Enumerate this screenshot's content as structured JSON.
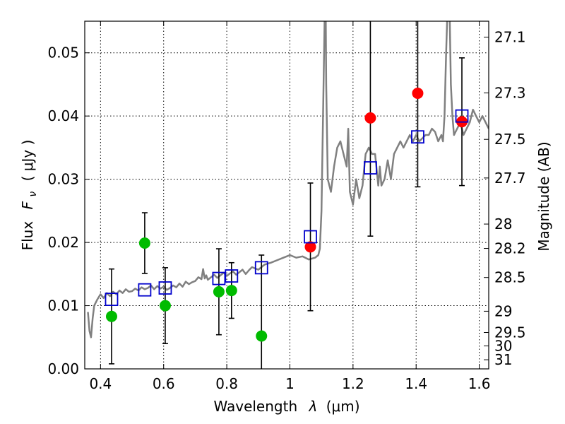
{
  "chart_data": {
    "type": "scatter",
    "title": "",
    "xlabel": "Wavelength",
    "xlabel_symbol": "λ",
    "xlabel_unit": "(μm)",
    "ylabel": "Flux",
    "ylabel_symbol": "F",
    "ylabel_sub": "ν",
    "ylabel_unit": "( μJy )",
    "y2label": "Magnitude (AB)",
    "xlim": [
      0.35,
      1.63
    ],
    "ylim": [
      0.0,
      0.055
    ],
    "grid": true,
    "x_ticks": [
      0.4,
      0.6,
      0.8,
      1.0,
      1.2,
      1.4,
      1.6
    ],
    "x_tick_labels": [
      "0.4",
      "0.6",
      "0.8",
      "1",
      "1.2",
      "1.4",
      "1.6"
    ],
    "y_ticks": [
      0.0,
      0.01,
      0.02,
      0.03,
      0.04,
      0.05
    ],
    "y_tick_labels": [
      "0.00",
      "0.01",
      "0.02",
      "0.03",
      "0.04",
      "0.05"
    ],
    "y2_ticks": [
      27.1,
      27.3,
      27.5,
      27.7,
      28,
      28.2,
      28.5,
      29,
      29.5,
      30,
      31
    ],
    "y2_tick_labels": [
      "27.1",
      "27.3",
      "27.5",
      "27.7",
      "28",
      "28.2",
      "28.5",
      "29",
      "29.5",
      "30",
      "31"
    ],
    "colors": {
      "model": "#808080",
      "hst": "#00bb00",
      "irac": "#ff0000",
      "model_phot": "#0000cc",
      "errorbar": "#000000"
    },
    "series": [
      {
        "name": "model_sed",
        "style": "line",
        "x": [
          0.36,
          0.365,
          0.37,
          0.375,
          0.38,
          0.39,
          0.4,
          0.41,
          0.42,
          0.43,
          0.44,
          0.45,
          0.46,
          0.47,
          0.48,
          0.49,
          0.5,
          0.51,
          0.52,
          0.53,
          0.54,
          0.55,
          0.56,
          0.57,
          0.58,
          0.59,
          0.6,
          0.61,
          0.62,
          0.63,
          0.64,
          0.65,
          0.66,
          0.67,
          0.68,
          0.69,
          0.7,
          0.71,
          0.72,
          0.725,
          0.73,
          0.735,
          0.74,
          0.75,
          0.76,
          0.77,
          0.78,
          0.79,
          0.8,
          0.81,
          0.82,
          0.83,
          0.84,
          0.85,
          0.86,
          0.87,
          0.88,
          0.9,
          0.92,
          0.94,
          0.96,
          0.98,
          1.0,
          1.02,
          1.04,
          1.06,
          1.08,
          1.09,
          1.095,
          1.1,
          1.105,
          1.11,
          1.113,
          1.115,
          1.12,
          1.13,
          1.14,
          1.15,
          1.16,
          1.17,
          1.18,
          1.185,
          1.19,
          1.2,
          1.21,
          1.22,
          1.23,
          1.24,
          1.25,
          1.26,
          1.27,
          1.28,
          1.285,
          1.29,
          1.3,
          1.31,
          1.32,
          1.33,
          1.34,
          1.35,
          1.36,
          1.37,
          1.38,
          1.39,
          1.4,
          1.41,
          1.42,
          1.43,
          1.44,
          1.45,
          1.46,
          1.47,
          1.48,
          1.485,
          1.49,
          1.495,
          1.5,
          1.505,
          1.51,
          1.515,
          1.52,
          1.53,
          1.54,
          1.55,
          1.56,
          1.57,
          1.58,
          1.59,
          1.6,
          1.61,
          1.62,
          1.63
        ],
        "y": [
          0.009,
          0.006,
          0.005,
          0.008,
          0.01,
          0.011,
          0.0118,
          0.0112,
          0.012,
          0.0115,
          0.0122,
          0.0118,
          0.0124,
          0.012,
          0.0126,
          0.0122,
          0.0123,
          0.0127,
          0.0124,
          0.0129,
          0.0126,
          0.0128,
          0.0132,
          0.0126,
          0.0131,
          0.0127,
          0.013,
          0.0125,
          0.0128,
          0.0132,
          0.0129,
          0.0135,
          0.013,
          0.0138,
          0.0134,
          0.0137,
          0.0139,
          0.0145,
          0.0142,
          0.0158,
          0.0143,
          0.0148,
          0.0141,
          0.0145,
          0.0149,
          0.0144,
          0.0148,
          0.0152,
          0.0147,
          0.0151,
          0.0154,
          0.0149,
          0.0153,
          0.0157,
          0.015,
          0.0156,
          0.0161,
          0.0157,
          0.0165,
          0.0168,
          0.0172,
          0.0176,
          0.018,
          0.0176,
          0.0178,
          0.0173,
          0.0176,
          0.018,
          0.019,
          0.025,
          0.04,
          0.055,
          0.06,
          0.045,
          0.03,
          0.028,
          0.032,
          0.035,
          0.036,
          0.034,
          0.032,
          0.038,
          0.028,
          0.026,
          0.03,
          0.027,
          0.029,
          0.034,
          0.035,
          0.034,
          0.034,
          0.029,
          0.032,
          0.029,
          0.03,
          0.033,
          0.03,
          0.034,
          0.035,
          0.036,
          0.035,
          0.036,
          0.037,
          0.036,
          0.037,
          0.036,
          0.0365,
          0.037,
          0.037,
          0.038,
          0.0375,
          0.036,
          0.037,
          0.036,
          0.04,
          0.05,
          0.058,
          0.06,
          0.045,
          0.04,
          0.037,
          0.038,
          0.039,
          0.037,
          0.038,
          0.039,
          0.041,
          0.04,
          0.039,
          0.04,
          0.039,
          0.038
        ]
      },
      {
        "name": "hst_photometry",
        "style": "circle",
        "x": [
          0.435,
          0.54,
          0.605,
          0.775,
          0.815,
          0.91
        ],
        "y": [
          0.0083,
          0.0199,
          0.01,
          0.0122,
          0.0124,
          0.0052
        ],
        "yerr": [
          0.0075,
          0.0048,
          0.006,
          0.0068,
          0.0044,
          0.0128
        ]
      },
      {
        "name": "irac_photometry",
        "style": "circle",
        "x": [
          1.065,
          1.255,
          1.405,
          1.545
        ],
        "y": [
          0.0193,
          0.0397,
          0.0436,
          0.0391
        ],
        "yerr": [
          0.0101,
          0.0187,
          0.0148,
          0.0101
        ]
      },
      {
        "name": "model_photometry",
        "style": "square",
        "x": [
          0.435,
          0.54,
          0.605,
          0.775,
          0.815,
          0.91,
          1.065,
          1.255,
          1.405,
          1.545
        ],
        "y": [
          0.011,
          0.0125,
          0.0128,
          0.0143,
          0.0147,
          0.016,
          0.0209,
          0.0318,
          0.0367,
          0.04
        ]
      }
    ]
  }
}
